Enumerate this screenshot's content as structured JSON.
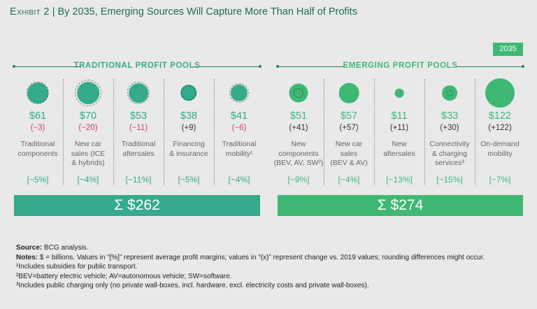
{
  "header": {
    "exhibit": "Exhibit 2",
    "separator": "|",
    "title": "By 2035, Emerging Sources Will Capture More Than Half of Profits"
  },
  "year_badge": "2035",
  "colors": {
    "traditional": "#35aa8c",
    "emerging": "#3fb874",
    "negative": "#d4405f",
    "title": "#1f6e4f"
  },
  "chart_data": {
    "type": "bubble-infographic",
    "unit": "$ billions",
    "groups": [
      {
        "name": "TRADITIONAL PROFIT POOLS",
        "total": "Σ $262",
        "items": [
          {
            "value": "$61",
            "change": "(−3)",
            "label": [
              "Traditional",
              "components"
            ],
            "margin": "[~5%]",
            "v": 61,
            "c": -3
          },
          {
            "value": "$70",
            "change": "(−20)",
            "label": [
              "New car",
              "sales (ICE",
              "& hybrids)"
            ],
            "margin": "[~4%]",
            "v": 70,
            "c": -20
          },
          {
            "value": "$53",
            "change": "(−11)",
            "label": [
              "Traditional",
              "aftersales"
            ],
            "margin": "[~11%]",
            "v": 53,
            "c": -11
          },
          {
            "value": "$38",
            "change": "(+9)",
            "label": [
              "Financing",
              "& insurance"
            ],
            "margin": "[~5%]",
            "v": 38,
            "c": 9
          },
          {
            "value": "$41",
            "change": "(−6)",
            "label": [
              "Traditional",
              "mobility¹"
            ],
            "margin": "[~4%]",
            "v": 41,
            "c": -6
          }
        ]
      },
      {
        "name": "EMERGING PROFIT POOLS",
        "total": "Σ $274",
        "items": [
          {
            "value": "$51",
            "change": "(+41)",
            "label": [
              "New",
              "components",
              "(BEV, AV, SW²)"
            ],
            "margin": "[~9%]",
            "v": 51,
            "c": 41
          },
          {
            "value": "$57",
            "change": "(+57)",
            "label": [
              "New car",
              "sales",
              "(BEV & AV)"
            ],
            "margin": "[~4%]",
            "v": 57,
            "c": 57
          },
          {
            "value": "$11",
            "change": "(+11)",
            "label": [
              "New",
              "aftersales"
            ],
            "margin": "[~13%]",
            "v": 11,
            "c": 11
          },
          {
            "value": "$33",
            "change": "(+30)",
            "label": [
              "Connectivity",
              "& charging",
              "services³"
            ],
            "margin": "[~15%]",
            "v": 33,
            "c": 30
          },
          {
            "value": "$122",
            "change": "(+122)",
            "label": [
              "On-demand",
              "mobility"
            ],
            "margin": "[~7%]",
            "v": 122,
            "c": 122
          }
        ]
      }
    ]
  },
  "notes": {
    "source_label": "Source:",
    "source": " BCG analysis.",
    "notes_label": "Notes:",
    "notes": " $ = billions. Values in “[%]” represent average profit margins; values in “(x)” represent change vs. 2019 values; rounding differences might occur.",
    "f1": "¹Includes subsidies for public transport.",
    "f2": "²BEV=battery electric vehicle; AV=autonomous vehicle; SW=software.",
    "f3": "³Includes public charging only (no private wall-boxes, incl. hardware, excl. electricity costs and private wall-boxes)."
  }
}
